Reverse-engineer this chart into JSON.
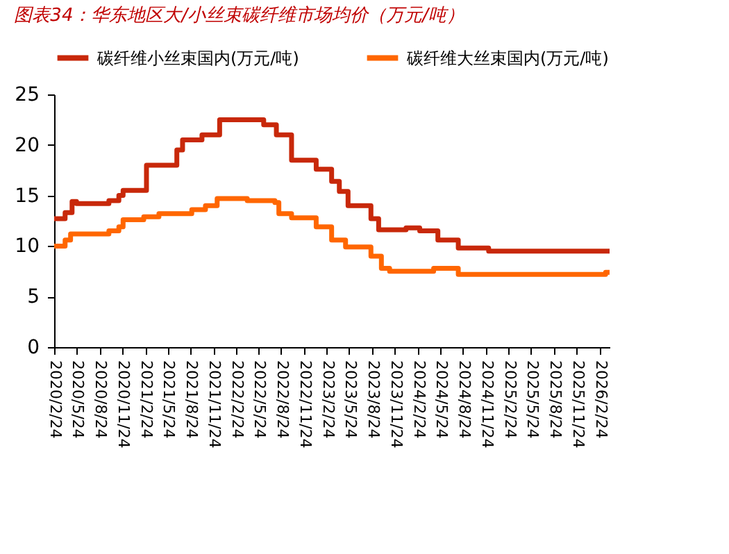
{
  "chart_data": {
    "type": "step",
    "title": "图表34：华东地区大/小丝束碳纤维市场均价（万元/吨）",
    "x": [
      "2020-02-24",
      "2020-04-08",
      "2020-05-06",
      "2020-05-24",
      "2020-10-01",
      "2020-11-10",
      "2020-11-27",
      "2021-03-01",
      "2021-07-01",
      "2021-07-24",
      "2021-10-10",
      "2021-12-20",
      "2022-06-15",
      "2022-08-05",
      "2022-10-05",
      "2023-01-12",
      "2023-03-15",
      "2023-04-15",
      "2023-05-20",
      "2023-08-20",
      "2023-09-20",
      "2024-01-08",
      "2024-03-03",
      "2024-05-15",
      "2024-08-05",
      "2024-12-05",
      "2026-04-05"
    ],
    "series": [
      {
        "name": "碳纤维小丝束国内(万元/吨)",
        "color": "#c8280a",
        "values": [
          12.7,
          13.3,
          14.4,
          14.2,
          14.5,
          15.0,
          15.5,
          18.0,
          19.5,
          20.5,
          21.0,
          22.5,
          22.0,
          21.0,
          18.5,
          17.6,
          16.4,
          15.4,
          14.0,
          12.7,
          11.6,
          11.8,
          11.5,
          10.6,
          9.8,
          9.5,
          9.5
        ]
      },
      {
        "name": "碳纤维大丝束国内(万元/吨)",
        "color": "#ff6600",
        "x": [
          "2020-02-24",
          "2020-04-08",
          "2020-04-30",
          "2020-10-01",
          "2020-11-10",
          "2020-11-27",
          "2021-02-18",
          "2021-04-20",
          "2021-08-30",
          "2021-10-24",
          "2021-12-10",
          "2022-04-10",
          "2022-07-30",
          "2022-08-15",
          "2022-10-05",
          "2023-01-12",
          "2023-03-15",
          "2023-05-10",
          "2023-08-20",
          "2023-10-01",
          "2023-11-03",
          "2024-04-28",
          "2024-08-05",
          "2026-03-20",
          "2026-04-05"
        ],
        "values": [
          10.0,
          10.6,
          11.2,
          11.5,
          11.9,
          12.6,
          12.9,
          13.2,
          13.6,
          14.0,
          14.7,
          14.5,
          14.3,
          13.2,
          12.8,
          11.9,
          10.6,
          9.9,
          9.0,
          7.8,
          7.5,
          7.8,
          7.2,
          7.4,
          7.4
        ]
      }
    ],
    "xlim": [
      "2020-02-24",
      "2026-04-05"
    ],
    "xticks": [
      {
        "value": "2020-02-24",
        "label": "2020/2/24"
      },
      {
        "value": "2020-05-24",
        "label": "2020/5/24"
      },
      {
        "value": "2020-08-24",
        "label": "2020/8/24"
      },
      {
        "value": "2020-11-24",
        "label": "2020/11/24"
      },
      {
        "value": "2021-02-24",
        "label": "2021/2/24"
      },
      {
        "value": "2021-05-24",
        "label": "2021/5/24"
      },
      {
        "value": "2021-08-24",
        "label": "2021/8/24"
      },
      {
        "value": "2021-11-24",
        "label": "2021/11/24"
      },
      {
        "value": "2022-02-24",
        "label": "2022/2/24"
      },
      {
        "value": "2022-05-24",
        "label": "2022/5/24"
      },
      {
        "value": "2022-08-24",
        "label": "2022/8/24"
      },
      {
        "value": "2022-11-24",
        "label": "2022/11/24"
      },
      {
        "value": "2023-02-24",
        "label": "2023/2/24"
      },
      {
        "value": "2023-05-24",
        "label": "2023/5/24"
      },
      {
        "value": "2023-08-24",
        "label": "2023/8/24"
      },
      {
        "value": "2023-11-24",
        "label": "2023/11/24"
      },
      {
        "value": "2024-02-24",
        "label": "2024/2/24"
      },
      {
        "value": "2024-05-24",
        "label": "2024/5/24"
      },
      {
        "value": "2024-08-24",
        "label": "2024/8/24"
      },
      {
        "value": "2024-11-24",
        "label": "2024/11/24"
      },
      {
        "value": "2025-02-24",
        "label": "2025/2/24"
      },
      {
        "value": "2025-05-24",
        "label": "2025/5/24"
      },
      {
        "value": "2025-08-24",
        "label": "2025/8/24"
      },
      {
        "value": "2025-11-24",
        "label": "2025/11/24"
      },
      {
        "value": "2026-02-24",
        "label": "2026/2/24"
      }
    ],
    "ylim": [
      0,
      25
    ],
    "yticks": [
      0,
      5,
      10,
      15,
      20,
      25
    ],
    "grid": false,
    "legend": "top",
    "marker": "none",
    "line_style": "solid"
  }
}
